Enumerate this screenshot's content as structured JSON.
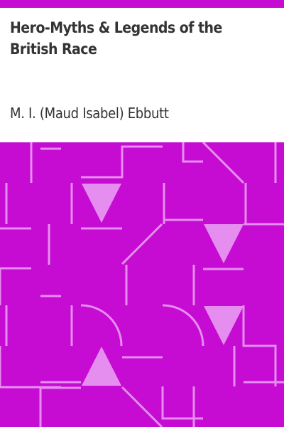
{
  "cover": {
    "title": "Hero-Myths & Legends of the British Race",
    "author": "M. I. (Maud Isabel) Ebbutt"
  },
  "colors": {
    "accent": "#c60bd3",
    "pattern_light": "#e68ef0",
    "text": "#333333",
    "background": "#ffffff"
  }
}
